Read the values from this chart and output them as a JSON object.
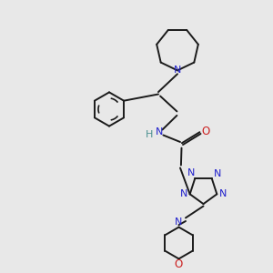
{
  "bg_color": "#e8e8e8",
  "bond_color": "#1a1a1a",
  "N_color": "#2020cc",
  "O_color": "#cc2020",
  "H_color": "#4a9090",
  "figsize": [
    3.0,
    3.0
  ],
  "dpi": 100,
  "xlim": [
    0,
    10
  ],
  "ylim": [
    0,
    10
  ]
}
